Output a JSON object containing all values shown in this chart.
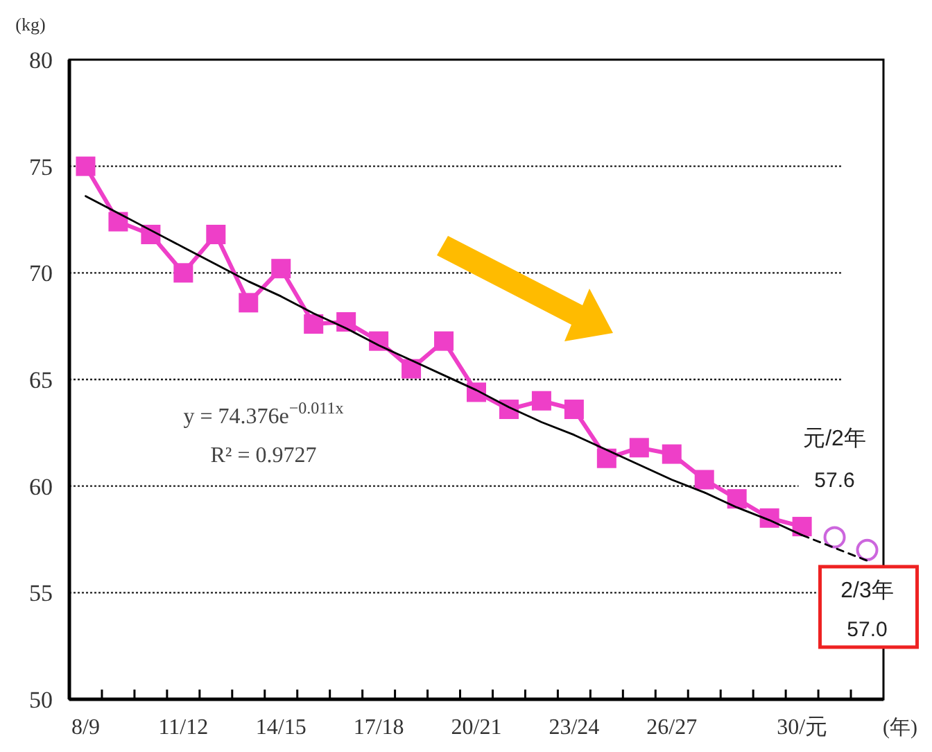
{
  "chart_data": {
    "type": "line",
    "ylabel": "(kg)",
    "xlabel": "(年)",
    "ylim": [
      50,
      80
    ],
    "yticks": [
      50,
      55,
      60,
      65,
      70,
      75,
      80
    ],
    "grid": "y",
    "categories": [
      "8/9",
      null,
      null,
      "11/12",
      null,
      null,
      "14/15",
      null,
      null,
      "17/18",
      null,
      null,
      "20/21",
      null,
      null,
      "23/24",
      null,
      null,
      "26/27",
      null,
      null,
      null,
      "30/元",
      null,
      null
    ],
    "series": [
      {
        "type": "line",
        "color": "#ee3fc8",
        "marker": "square",
        "line_style": "solid",
        "values": [
          75.0,
          72.4,
          71.8,
          70.0,
          71.8,
          68.6,
          70.2,
          67.6,
          67.7,
          66.8,
          65.5,
          66.8,
          64.4,
          63.6,
          64.0,
          63.6,
          61.3,
          61.8,
          61.5,
          60.3,
          59.4,
          58.5,
          58.1,
          null,
          null
        ]
      },
      {
        "type": "scatter",
        "color": "#cc66dd",
        "marker": "circle",
        "values": [
          null,
          null,
          null,
          null,
          null,
          null,
          null,
          null,
          null,
          null,
          null,
          null,
          null,
          null,
          null,
          null,
          null,
          null,
          null,
          null,
          null,
          null,
          null,
          57.6,
          57.0
        ],
        "value_labels": [
          null,
          null,
          null,
          null,
          null,
          null,
          null,
          null,
          null,
          null,
          null,
          null,
          null,
          null,
          null,
          null,
          null,
          null,
          null,
          null,
          null,
          null,
          null,
          "57.6",
          "57.0"
        ]
      },
      {
        "type": "line",
        "color": "#000000",
        "marker": "none",
        "line_style": "solid",
        "values": [
          73.6,
          72.8,
          72.0,
          71.2,
          70.4,
          69.6,
          68.9,
          68.1,
          67.4,
          66.6,
          65.9,
          65.2,
          64.5,
          63.7,
          63.0,
          62.4,
          61.7,
          61.0,
          60.3,
          59.7,
          59.0,
          58.4,
          57.7,
          null,
          null
        ]
      },
      {
        "type": "line",
        "color": "#000000",
        "marker": "none",
        "line_style": "dashed",
        "values": [
          null,
          null,
          null,
          null,
          null,
          null,
          null,
          null,
          null,
          null,
          null,
          null,
          null,
          null,
          null,
          null,
          null,
          null,
          null,
          null,
          null,
          null,
          57.7,
          57.1,
          56.5
        ]
      }
    ],
    "annotations": [
      "y = 74.376e$^{−0.011x}$",
      "R² = 0.9727",
      "元/2年",
      "2/3年"
    ]
  }
}
